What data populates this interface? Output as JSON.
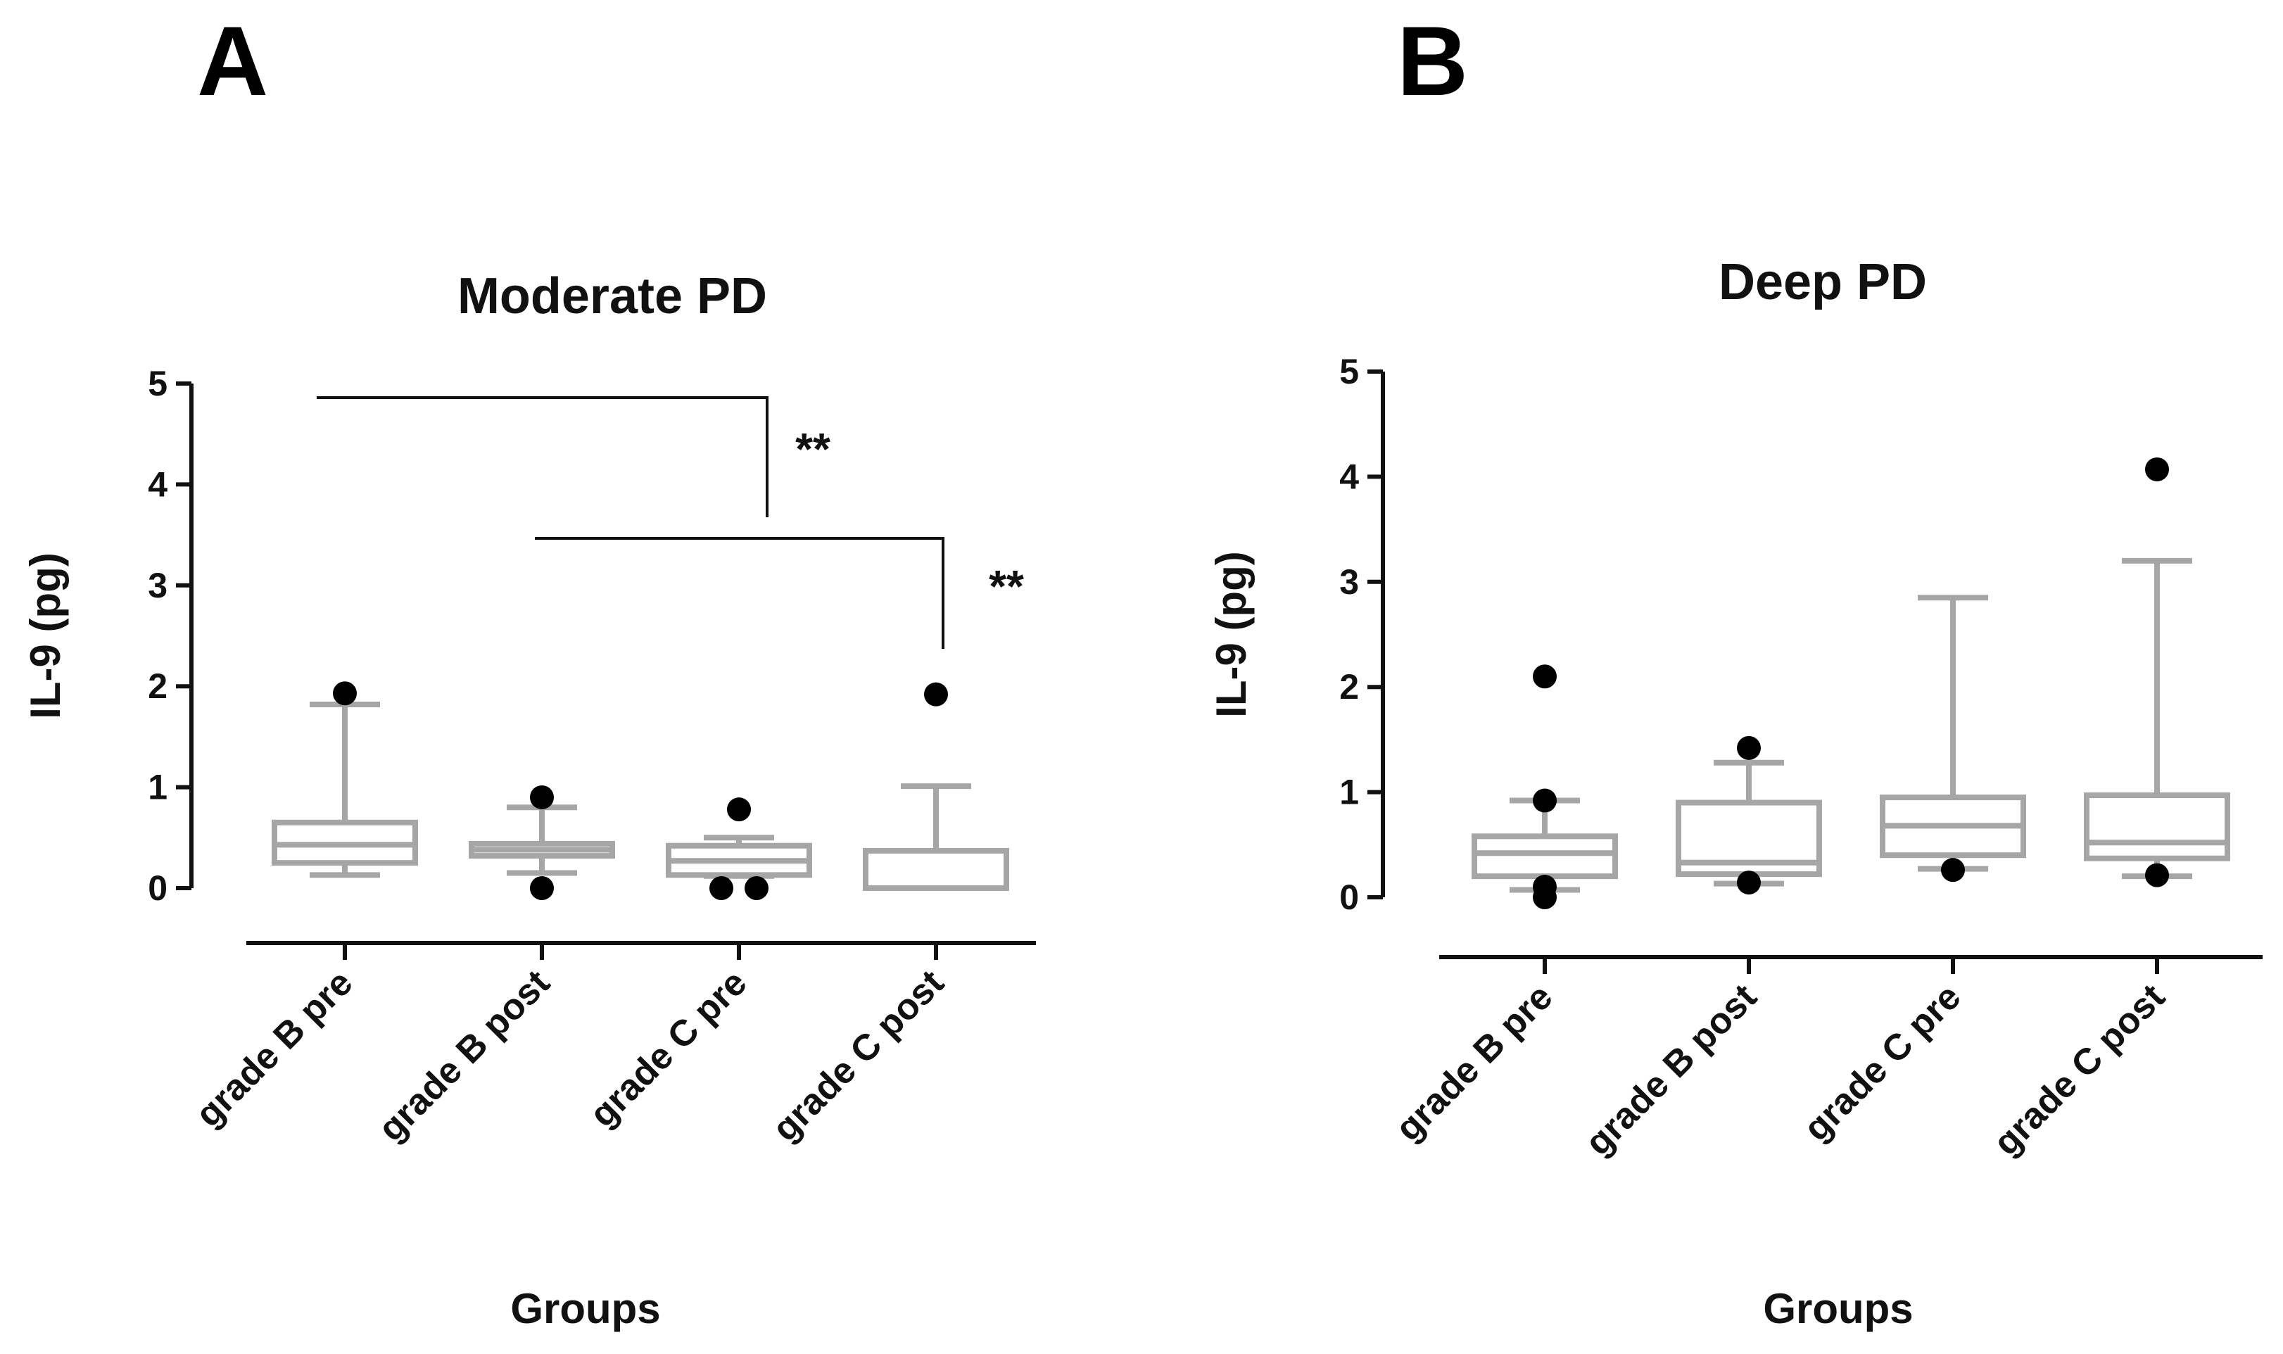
{
  "colors": {
    "box": "#a6a6a6",
    "outlier": "#000000",
    "axis": "#111111",
    "background": "#ffffff"
  },
  "chart_data": [
    {
      "panel_label": "A",
      "type": "box",
      "title": "Moderate PD",
      "xlabel": "Groups",
      "ylabel": "IL-9 (pg)",
      "ylim": [
        0,
        5
      ],
      "yticks": [
        "0",
        "1",
        "2",
        "3",
        "4",
        "5"
      ],
      "grid": false,
      "legend": "none",
      "categories": [
        "grade B pre",
        "grade B post",
        "grade C pre",
        "grade C post"
      ],
      "boxes": [
        {
          "category": "grade B pre",
          "whisker_low": 0.13,
          "q1": 0.25,
          "median": 0.43,
          "q3": 0.65,
          "whisker_high": 1.82,
          "outliers": [
            1.93
          ]
        },
        {
          "category": "grade B post",
          "whisker_low": 0.15,
          "q1": 0.32,
          "median": 0.38,
          "q3": 0.44,
          "whisker_high": 0.8,
          "outliers": [
            0.9,
            0.0
          ]
        },
        {
          "category": "grade C pre",
          "whisker_low": 0.12,
          "q1": 0.13,
          "median": 0.27,
          "q3": 0.42,
          "whisker_high": 0.5,
          "outliers": [
            0.78,
            0.0,
            0.0
          ]
        },
        {
          "category": "grade C post",
          "whisker_low": 0.0,
          "q1": 0.0,
          "median": 0.0,
          "q3": 0.37,
          "whisker_high": 1.01,
          "outliers": [
            1.92
          ]
        }
      ],
      "significance": [
        {
          "from": "grade B pre",
          "to": "grade C pre",
          "label": "**"
        },
        {
          "from": "grade B post",
          "to": "grade C post",
          "label": "**"
        }
      ]
    },
    {
      "panel_label": "B",
      "type": "box",
      "title": "Deep PD",
      "xlabel": "Groups",
      "ylabel": "IL-9 (pg)",
      "ylim": [
        0,
        5
      ],
      "yticks": [
        "0",
        "1",
        "2",
        "3",
        "4",
        "5"
      ],
      "grid": false,
      "legend": "none",
      "categories": [
        "grade B pre",
        "grade B post",
        "grade C pre",
        "grade C post"
      ],
      "boxes": [
        {
          "category": "grade B pre",
          "whisker_low": 0.07,
          "q1": 0.2,
          "median": 0.42,
          "q3": 0.58,
          "whisker_high": 0.92,
          "outliers": [
            2.1,
            0.92,
            0.1,
            0.0
          ]
        },
        {
          "category": "grade B post",
          "whisker_low": 0.13,
          "q1": 0.22,
          "median": 0.33,
          "q3": 0.9,
          "whisker_high": 1.28,
          "outliers": [
            1.42,
            0.14
          ]
        },
        {
          "category": "grade C pre",
          "whisker_low": 0.27,
          "q1": 0.4,
          "median": 0.68,
          "q3": 0.95,
          "whisker_high": 2.85,
          "outliers": [
            0.26
          ]
        },
        {
          "category": "grade C post",
          "whisker_low": 0.2,
          "q1": 0.37,
          "median": 0.52,
          "q3": 0.97,
          "whisker_high": 3.2,
          "outliers": [
            4.07,
            0.21
          ]
        }
      ],
      "significance": []
    }
  ]
}
